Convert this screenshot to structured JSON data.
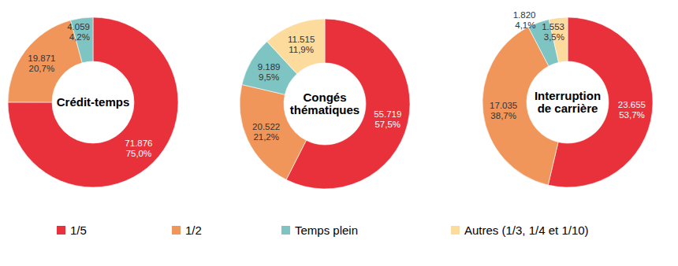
{
  "chart_data": [
    {
      "type": "donut",
      "title": "Crédit-temps",
      "categories": [
        "1/5",
        "1/2",
        "Temps plein",
        "Autres (1/3, 1/4 et 1/10)"
      ],
      "values": [
        71876,
        19871,
        4059,
        null
      ],
      "value_labels": [
        "71.876",
        "19.871",
        "4.059",
        null
      ],
      "percentages": [
        75.0,
        20.7,
        4.2,
        null
      ],
      "percentage_labels": [
        "75,0%",
        "20,7%",
        "4,2%",
        null
      ],
      "colors": [
        "#e8313a",
        "#f0965a",
        "#7ec4c2",
        "#fcdb9c"
      ],
      "data_labels": true,
      "legend": "bottom"
    },
    {
      "type": "donut",
      "title": "Congés\nthématiques",
      "categories": [
        "1/5",
        "1/2",
        "Temps plein",
        "Autres (1/3, 1/4 et 1/10)"
      ],
      "values": [
        55719,
        20522,
        9189,
        11515
      ],
      "value_labels": [
        "55.719",
        "20.522",
        "9.189",
        "11.515"
      ],
      "percentages": [
        57.5,
        21.2,
        9.5,
        11.9
      ],
      "percentage_labels": [
        "57,5%",
        "21,2%",
        "9,5%",
        "11,9%"
      ],
      "colors": [
        "#e8313a",
        "#f0965a",
        "#7ec4c2",
        "#fcdb9c"
      ],
      "data_labels": true
    },
    {
      "type": "donut",
      "title": "Interruption\nde carrière",
      "categories": [
        "1/5",
        "1/2",
        "Temps plein",
        "Autres (1/3, 1/4 et 1/10)"
      ],
      "values": [
        23655,
        17035,
        1820,
        1553
      ],
      "value_labels": [
        "23.655",
        "17.035",
        "1.820",
        "1.553"
      ],
      "percentages": [
        53.7,
        38.7,
        4.1,
        3.5
      ],
      "percentage_labels": [
        "53,7%",
        "38,7%",
        "4,1%",
        "3,5%"
      ],
      "colors": [
        "#e8313a",
        "#f0965a",
        "#7ec4c2",
        "#fcdb9c"
      ],
      "data_labels": true
    }
  ]
}
